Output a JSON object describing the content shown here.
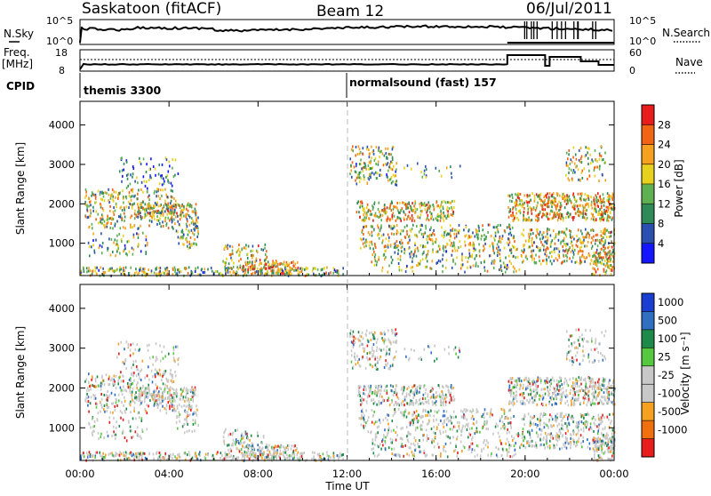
{
  "header": {
    "station": "Saskatoon (fitACF)",
    "beam": "Beam 12",
    "date": "06/Jul/2011"
  },
  "top_panels": {
    "nsky_label": "N.Sky",
    "nsearch_label": "N.Search",
    "nsky_ticks": [
      "10^5",
      "10^0"
    ],
    "nsearch_ticks": [
      "10^5",
      "10^0"
    ],
    "freq_label_1": "Freq.",
    "freq_label_2": "[MHz]",
    "freq_ticks": [
      "18",
      "8"
    ],
    "nave_label": "Nave",
    "nave_ticks": [
      "60",
      "0"
    ],
    "cpid_label": "CPID",
    "cpid_segments": [
      {
        "label": "themis 3300",
        "start_hour": 0
      },
      {
        "label": "normalsound (fast) 157",
        "start_hour": 12
      }
    ]
  },
  "chart_data": [
    {
      "type": "heatmap",
      "name": "power",
      "ylabel": "Slant Range [km]",
      "ylim": [
        180,
        4600
      ],
      "xlim": [
        0,
        24
      ],
      "y_ticks": [
        1000,
        2000,
        3000,
        4000
      ],
      "colorbar": {
        "label": "Power [dB]",
        "tick_labels": [
          "4",
          "8",
          "12",
          "16",
          "20",
          "24",
          "28"
        ],
        "colors": [
          "#1515ff",
          "#2a4fb0",
          "#2e8b57",
          "#5fb050",
          "#e6d21e",
          "#f5a01e",
          "#f06414",
          "#e81c1c"
        ]
      }
    },
    {
      "type": "heatmap",
      "name": "velocity",
      "ylabel": "Slant Range [km]",
      "xlabel": "Time UT",
      "ylim": [
        180,
        4600
      ],
      "xlim": [
        0,
        24
      ],
      "y_ticks": [
        1000,
        2000,
        3000,
        4000
      ],
      "x_tick_labels": [
        "00:00",
        "04:00",
        "08:00",
        "12:00",
        "16:00",
        "20:00",
        "00:00"
      ],
      "colorbar": {
        "label": "Velocity [m s⁻¹]",
        "tick_labels": [
          "1000",
          "500",
          "100",
          "25",
          "-25",
          "-100",
          "-500",
          "-1000"
        ],
        "colors": [
          "#1a3fd0",
          "#2f6ec0",
          "#1e8a4a",
          "#55c840",
          "#c8c8c8",
          "#c8c8c8",
          "#f5a01e",
          "#f07010",
          "#e81c1c"
        ]
      }
    }
  ]
}
